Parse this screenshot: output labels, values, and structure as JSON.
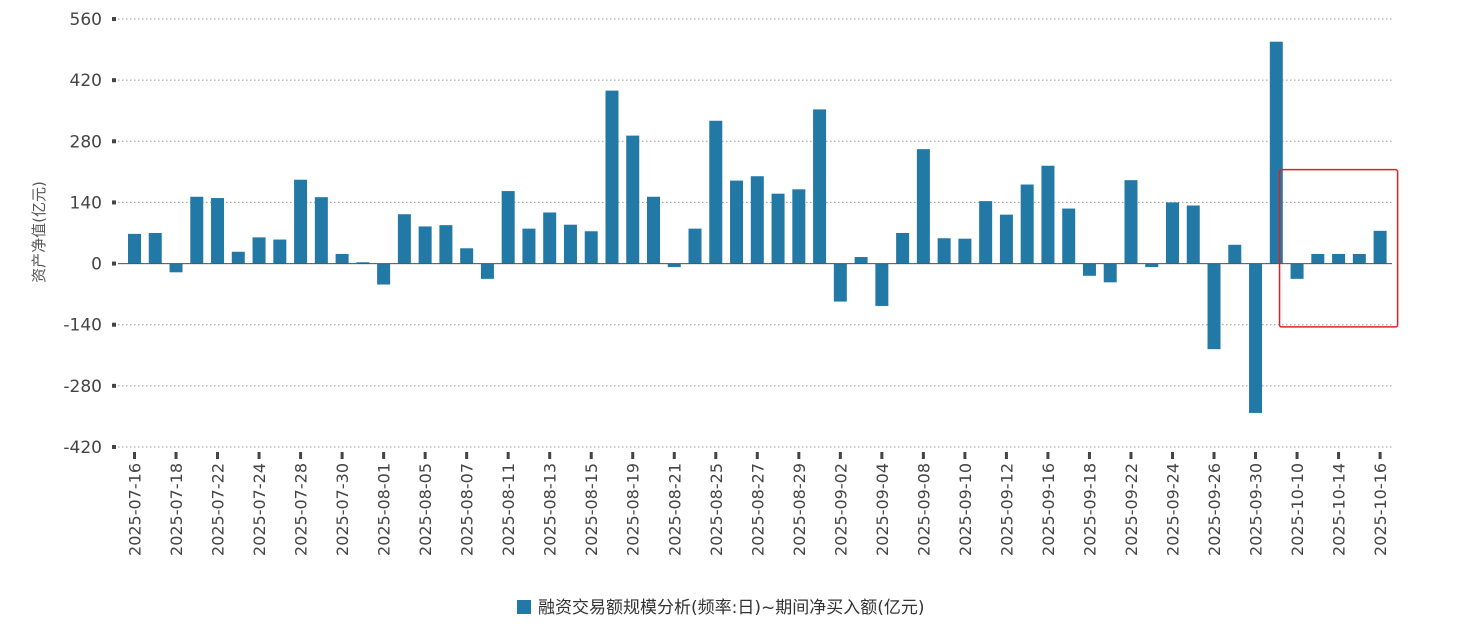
{
  "chart_data": {
    "type": "bar",
    "ylabel": "资产净值(亿元)",
    "ylim": [
      -420,
      560
    ],
    "yticks": [
      560,
      420,
      280,
      140,
      0,
      -140,
      -280,
      -420
    ],
    "grid": true,
    "legend": {
      "position": "bottom-center"
    },
    "colors": {
      "bar": "#2279a6",
      "highlight_box": "#e02020"
    },
    "series": [
      {
        "name": "融资交易额规模分析(频率:日)~期间净买入额(亿元)",
        "values": [
          68,
          70,
          -20,
          153,
          150,
          27,
          60,
          55,
          192,
          152,
          22,
          3,
          -48,
          113,
          85,
          88,
          35,
          -35,
          166,
          80,
          117,
          89,
          74,
          396,
          293,
          153,
          -8,
          80,
          327,
          190,
          200,
          160,
          170,
          353,
          -87,
          15,
          -97,
          70,
          262,
          58,
          57,
          143,
          112,
          181,
          224,
          126,
          -28,
          -43,
          191,
          -8,
          140,
          133,
          -196,
          43,
          -342,
          508,
          -35,
          22,
          22,
          22,
          75
        ]
      }
    ],
    "x": [
      "2025-07-16",
      "2025-07-17",
      "2025-07-18",
      "2025-07-21",
      "2025-07-22",
      "2025-07-23",
      "2025-07-24",
      "2025-07-25",
      "2025-07-28",
      "2025-07-29",
      "2025-07-30",
      "2025-07-31",
      "2025-08-01",
      "2025-08-04",
      "2025-08-05",
      "2025-08-06",
      "2025-08-07",
      "2025-08-08",
      "2025-08-11",
      "2025-08-12",
      "2025-08-13",
      "2025-08-14",
      "2025-08-15",
      "2025-08-18",
      "2025-08-19",
      "2025-08-20",
      "2025-08-21",
      "2025-08-22",
      "2025-08-25",
      "2025-08-26",
      "2025-08-27",
      "2025-08-28",
      "2025-08-29",
      "2025-09-01",
      "2025-09-02",
      "2025-09-03",
      "2025-09-04",
      "2025-09-05",
      "2025-09-08",
      "2025-09-09",
      "2025-09-10",
      "2025-09-11",
      "2025-09-12",
      "2025-09-15",
      "2025-09-16",
      "2025-09-17",
      "2025-09-18",
      "2025-09-19",
      "2025-09-22",
      "2025-09-23",
      "2025-09-24",
      "2025-09-25",
      "2025-09-26",
      "2025-09-29",
      "2025-09-30",
      "2025-10-09",
      "2025-10-10",
      "2025-10-13",
      "2025-10-14",
      "2025-10-15",
      "2025-10-16"
    ],
    "x_tick_labels": [
      "2025-07-16",
      "2025-07-18",
      "2025-07-22",
      "2025-07-24",
      "2025-07-28",
      "2025-07-30",
      "2025-08-01",
      "2025-08-05",
      "2025-08-07",
      "2025-08-11",
      "2025-08-13",
      "2025-08-15",
      "2025-08-19",
      "2025-08-21",
      "2025-08-25",
      "2025-08-27",
      "2025-08-29",
      "2025-09-02",
      "2025-09-04",
      "2025-09-08",
      "2025-09-10",
      "2025-09-12",
      "2025-09-16",
      "2025-09-18",
      "2025-09-22",
      "2025-09-24",
      "2025-09-26",
      "2025-09-30",
      "2025-10-10",
      "2025-10-14",
      "2025-10-16"
    ],
    "highlight": {
      "from": "2025-10-10",
      "to": "2025-10-16",
      "range": [
        -145,
        215
      ]
    }
  }
}
